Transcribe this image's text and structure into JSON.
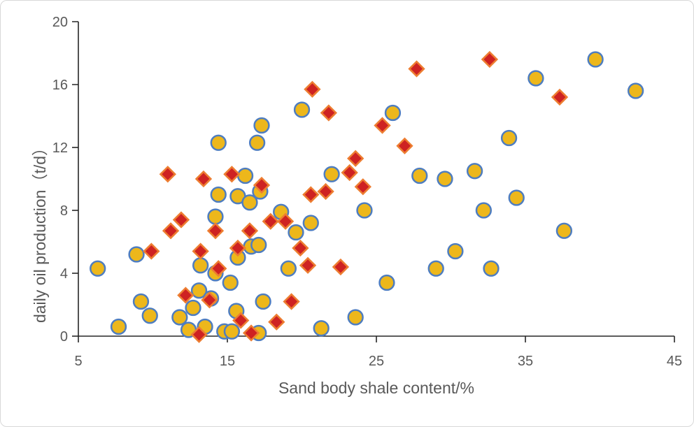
{
  "chart_data": {
    "type": "scatter",
    "title": "",
    "xlabel": "Sand body shale content/%",
    "ylabel": "daily  oil production（t/d）",
    "xlim": [
      5,
      45
    ],
    "ylim": [
      0,
      20
    ],
    "x_ticks": [
      5,
      15,
      25,
      35,
      45
    ],
    "y_ticks": [
      0,
      4,
      8,
      12,
      16,
      20
    ],
    "grid": false,
    "legend": "none",
    "series": [
      {
        "name": "circle-series",
        "marker": "circle",
        "fill": "#EDB71B",
        "stroke": "#4E7DC0",
        "points": [
          [
            6.3,
            4.3
          ],
          [
            7.7,
            0.6
          ],
          [
            8.9,
            5.2
          ],
          [
            9.2,
            2.2
          ],
          [
            9.8,
            1.3
          ],
          [
            11.8,
            1.2
          ],
          [
            12.4,
            0.4
          ],
          [
            12.7,
            1.8
          ],
          [
            13.1,
            2.9
          ],
          [
            13.2,
            4.5
          ],
          [
            13.5,
            0.6
          ],
          [
            13.9,
            2.4
          ],
          [
            14.2,
            7.6
          ],
          [
            14.2,
            4.0
          ],
          [
            14.4,
            12.3
          ],
          [
            14.4,
            9.0
          ],
          [
            14.8,
            0.3
          ],
          [
            15.2,
            3.4
          ],
          [
            15.3,
            0.3
          ],
          [
            15.6,
            1.6
          ],
          [
            15.7,
            8.9
          ],
          [
            15.7,
            5.0
          ],
          [
            16.2,
            10.2
          ],
          [
            16.5,
            8.5
          ],
          [
            16.6,
            5.7
          ],
          [
            17.0,
            12.3
          ],
          [
            17.1,
            5.8
          ],
          [
            17.1,
            0.2
          ],
          [
            17.2,
            9.2
          ],
          [
            17.3,
            13.4
          ],
          [
            17.4,
            2.2
          ],
          [
            18.6,
            7.9
          ],
          [
            19.1,
            4.3
          ],
          [
            19.6,
            6.6
          ],
          [
            20.0,
            14.4
          ],
          [
            20.6,
            7.2
          ],
          [
            21.3,
            0.5
          ],
          [
            22.0,
            10.3
          ],
          [
            23.6,
            1.2
          ],
          [
            24.2,
            8.0
          ],
          [
            25.7,
            3.4
          ],
          [
            26.1,
            14.2
          ],
          [
            27.9,
            10.2
          ],
          [
            29.0,
            4.3
          ],
          [
            29.6,
            10.0
          ],
          [
            30.3,
            5.4
          ],
          [
            31.6,
            10.5
          ],
          [
            32.2,
            8.0
          ],
          [
            32.7,
            4.3
          ],
          [
            33.9,
            12.6
          ],
          [
            34.4,
            8.8
          ],
          [
            35.7,
            16.4
          ],
          [
            37.6,
            6.7
          ],
          [
            39.7,
            17.6
          ],
          [
            42.4,
            15.6
          ]
        ]
      },
      {
        "name": "diamond-series",
        "marker": "diamond",
        "fill": "#CE2222",
        "stroke": "#ED7D31",
        "points": [
          [
            9.9,
            5.4
          ],
          [
            11.0,
            10.3
          ],
          [
            11.2,
            6.7
          ],
          [
            11.9,
            7.4
          ],
          [
            12.2,
            2.6
          ],
          [
            13.1,
            0.1
          ],
          [
            13.2,
            5.4
          ],
          [
            13.4,
            10.0
          ],
          [
            13.8,
            2.3
          ],
          [
            14.2,
            6.7
          ],
          [
            14.4,
            4.3
          ],
          [
            15.3,
            10.3
          ],
          [
            15.7,
            5.6
          ],
          [
            15.9,
            1.0
          ],
          [
            16.5,
            6.7
          ],
          [
            16.6,
            0.2
          ],
          [
            17.3,
            9.6
          ],
          [
            17.9,
            7.3
          ],
          [
            18.3,
            0.9
          ],
          [
            18.9,
            7.3
          ],
          [
            19.3,
            2.2
          ],
          [
            19.9,
            5.6
          ],
          [
            20.4,
            4.5
          ],
          [
            20.6,
            9.0
          ],
          [
            20.7,
            15.7
          ],
          [
            21.6,
            9.2
          ],
          [
            21.8,
            14.2
          ],
          [
            22.6,
            4.4
          ],
          [
            23.2,
            10.4
          ],
          [
            23.6,
            11.3
          ],
          [
            24.1,
            9.5
          ],
          [
            25.4,
            13.4
          ],
          [
            26.9,
            12.1
          ],
          [
            27.7,
            17.0
          ],
          [
            32.6,
            17.6
          ],
          [
            37.3,
            15.2
          ]
        ]
      }
    ]
  },
  "axis": {
    "line_color": "#262626",
    "label_color": "#595959"
  },
  "frame": {
    "background": "#FFFFFF",
    "border_color": "#D8D8D8"
  }
}
